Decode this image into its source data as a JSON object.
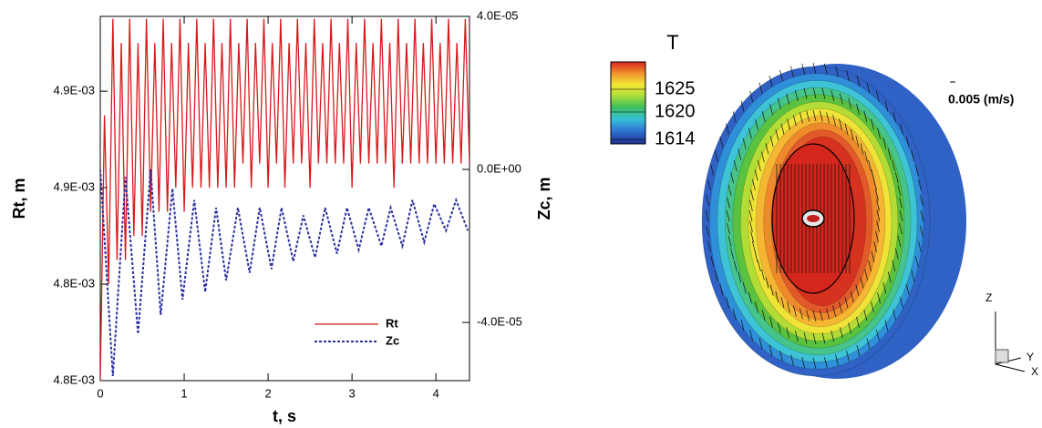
{
  "chart_data": [
    {
      "type": "line",
      "xlabel": "t, s",
      "ylabel": "Rt, m",
      "y2label": "Zc, m",
      "xlim": [
        0,
        4.4
      ],
      "xticks": [
        0,
        1,
        2,
        3,
        4
      ],
      "ylim": [
        0.0048,
        0.004951
      ],
      "yticks": [
        {
          "value": 0.0048,
          "label": "4.8E-03"
        },
        {
          "value": 0.00484,
          "label": "4.8E-03"
        },
        {
          "value": 0.00488,
          "label": "4.9E-03"
        },
        {
          "value": 0.00492,
          "label": "4.9E-03"
        }
      ],
      "y2lim": [
        -5.52e-05,
        4e-05
      ],
      "y2ticks": [
        {
          "value": 4e-05,
          "label": "4.0E-05"
        },
        {
          "value": 0,
          "label": "0.0E+00"
        },
        {
          "value": -4e-05,
          "label": "-4.0E-05"
        }
      ],
      "legend": "lower right",
      "series": [
        {
          "name": "Rt",
          "color": "#d7191c",
          "line_style": "solid",
          "x": [
            0,
            0.05,
            0.1,
            0.15,
            0.2,
            0.25,
            0.3,
            0.35,
            0.4,
            0.45,
            0.5,
            0.55,
            0.6,
            0.65,
            0.7,
            0.75,
            0.8,
            0.85,
            0.9,
            0.95,
            1,
            1.05,
            1.1,
            1.15,
            1.2,
            1.25,
            1.3,
            1.35,
            1.4,
            1.45,
            1.5,
            1.55,
            1.6,
            1.65,
            1.7,
            1.75,
            1.8,
            1.85,
            1.9,
            1.95,
            2,
            2.05,
            2.1,
            2.15,
            2.2,
            2.25,
            2.3,
            2.35,
            2.4,
            2.45,
            2.5,
            2.55,
            2.6,
            2.65,
            2.7,
            2.75,
            2.8,
            2.85,
            2.9,
            2.95,
            3,
            3.05,
            3.1,
            3.15,
            3.2,
            3.25,
            3.3,
            3.35,
            3.4,
            3.45,
            3.5,
            3.55,
            3.6,
            3.65,
            3.7,
            3.75,
            3.8,
            3.85,
            3.9,
            3.95,
            4,
            4.05,
            4.1,
            4.15,
            4.2,
            4.25,
            4.3,
            4.35,
            4.4
          ],
          "values": [
            0.0048,
            0.00491,
            0.00484,
            0.00495,
            0.00485,
            0.00494,
            0.00485,
            0.00495,
            0.00486,
            0.00494,
            0.00486,
            0.00495,
            0.00487,
            0.00494,
            0.00487,
            0.00495,
            0.00487,
            0.00494,
            0.00488,
            0.00495,
            0.00487,
            0.00494,
            0.00488,
            0.00495,
            0.00488,
            0.00494,
            0.00488,
            0.00495,
            0.00488,
            0.00494,
            0.00488,
            0.00495,
            0.00488,
            0.00494,
            0.00489,
            0.00495,
            0.00488,
            0.00494,
            0.00489,
            0.00495,
            0.00488,
            0.00494,
            0.00489,
            0.00495,
            0.00488,
            0.00494,
            0.00489,
            0.00495,
            0.00489,
            0.00494,
            0.00488,
            0.00495,
            0.00489,
            0.00494,
            0.00489,
            0.00495,
            0.00489,
            0.00494,
            0.00489,
            0.00495,
            0.00488,
            0.00494,
            0.00489,
            0.00495,
            0.00489,
            0.00494,
            0.00489,
            0.00495,
            0.00489,
            0.00494,
            0.00488,
            0.00495,
            0.00489,
            0.00494,
            0.00489,
            0.00495,
            0.00489,
            0.00494,
            0.00489,
            0.00495,
            0.00489,
            0.00494,
            0.00489,
            0.00495,
            0.00489,
            0.00494,
            0.00489,
            0.00495,
            0.00489
          ]
        },
        {
          "name": "Zc",
          "color": "#2b2f9e",
          "line_style": "dashed",
          "axis": "y2",
          "x": [
            0,
            0.15,
            0.3,
            0.45,
            0.6,
            0.72,
            0.86,
            0.98,
            1.12,
            1.25,
            1.38,
            1.5,
            1.64,
            1.78,
            1.9,
            2.04,
            2.16,
            2.3,
            2.42,
            2.56,
            2.68,
            2.82,
            2.94,
            3.08,
            3.2,
            3.35,
            3.46,
            3.6,
            3.72,
            3.86,
            3.98,
            4.12,
            4.24,
            4.38
          ],
          "values": [
            0,
            -5.4e-05,
            -2e-06,
            -4.3e-05,
            0,
            -3.8e-05,
            -5e-06,
            -3.4e-05,
            -8e-06,
            -3.2e-05,
            -1e-05,
            -2.9e-05,
            -1e-05,
            -2.7e-05,
            -1e-05,
            -2.6e-05,
            -1e-05,
            -2.4e-05,
            -1.2e-05,
            -2.3e-05,
            -1e-05,
            -2.2e-05,
            -1e-05,
            -2.1e-05,
            -1e-05,
            -2e-05,
            -1e-05,
            -2e-05,
            -8e-06,
            -1.9e-05,
            -9e-06,
            -1.6e-05,
            -8e-06,
            -1.6e-05
          ]
        }
      ]
    },
    {
      "type": "contour",
      "colorbar": {
        "title": "T",
        "lim": [
          1613,
          1631
        ],
        "ticks": [
          1614,
          1620,
          1625
        ]
      },
      "annotation": "0.005 (m/s)",
      "axis_labels": [
        "Z",
        "Y",
        "X"
      ]
    }
  ]
}
